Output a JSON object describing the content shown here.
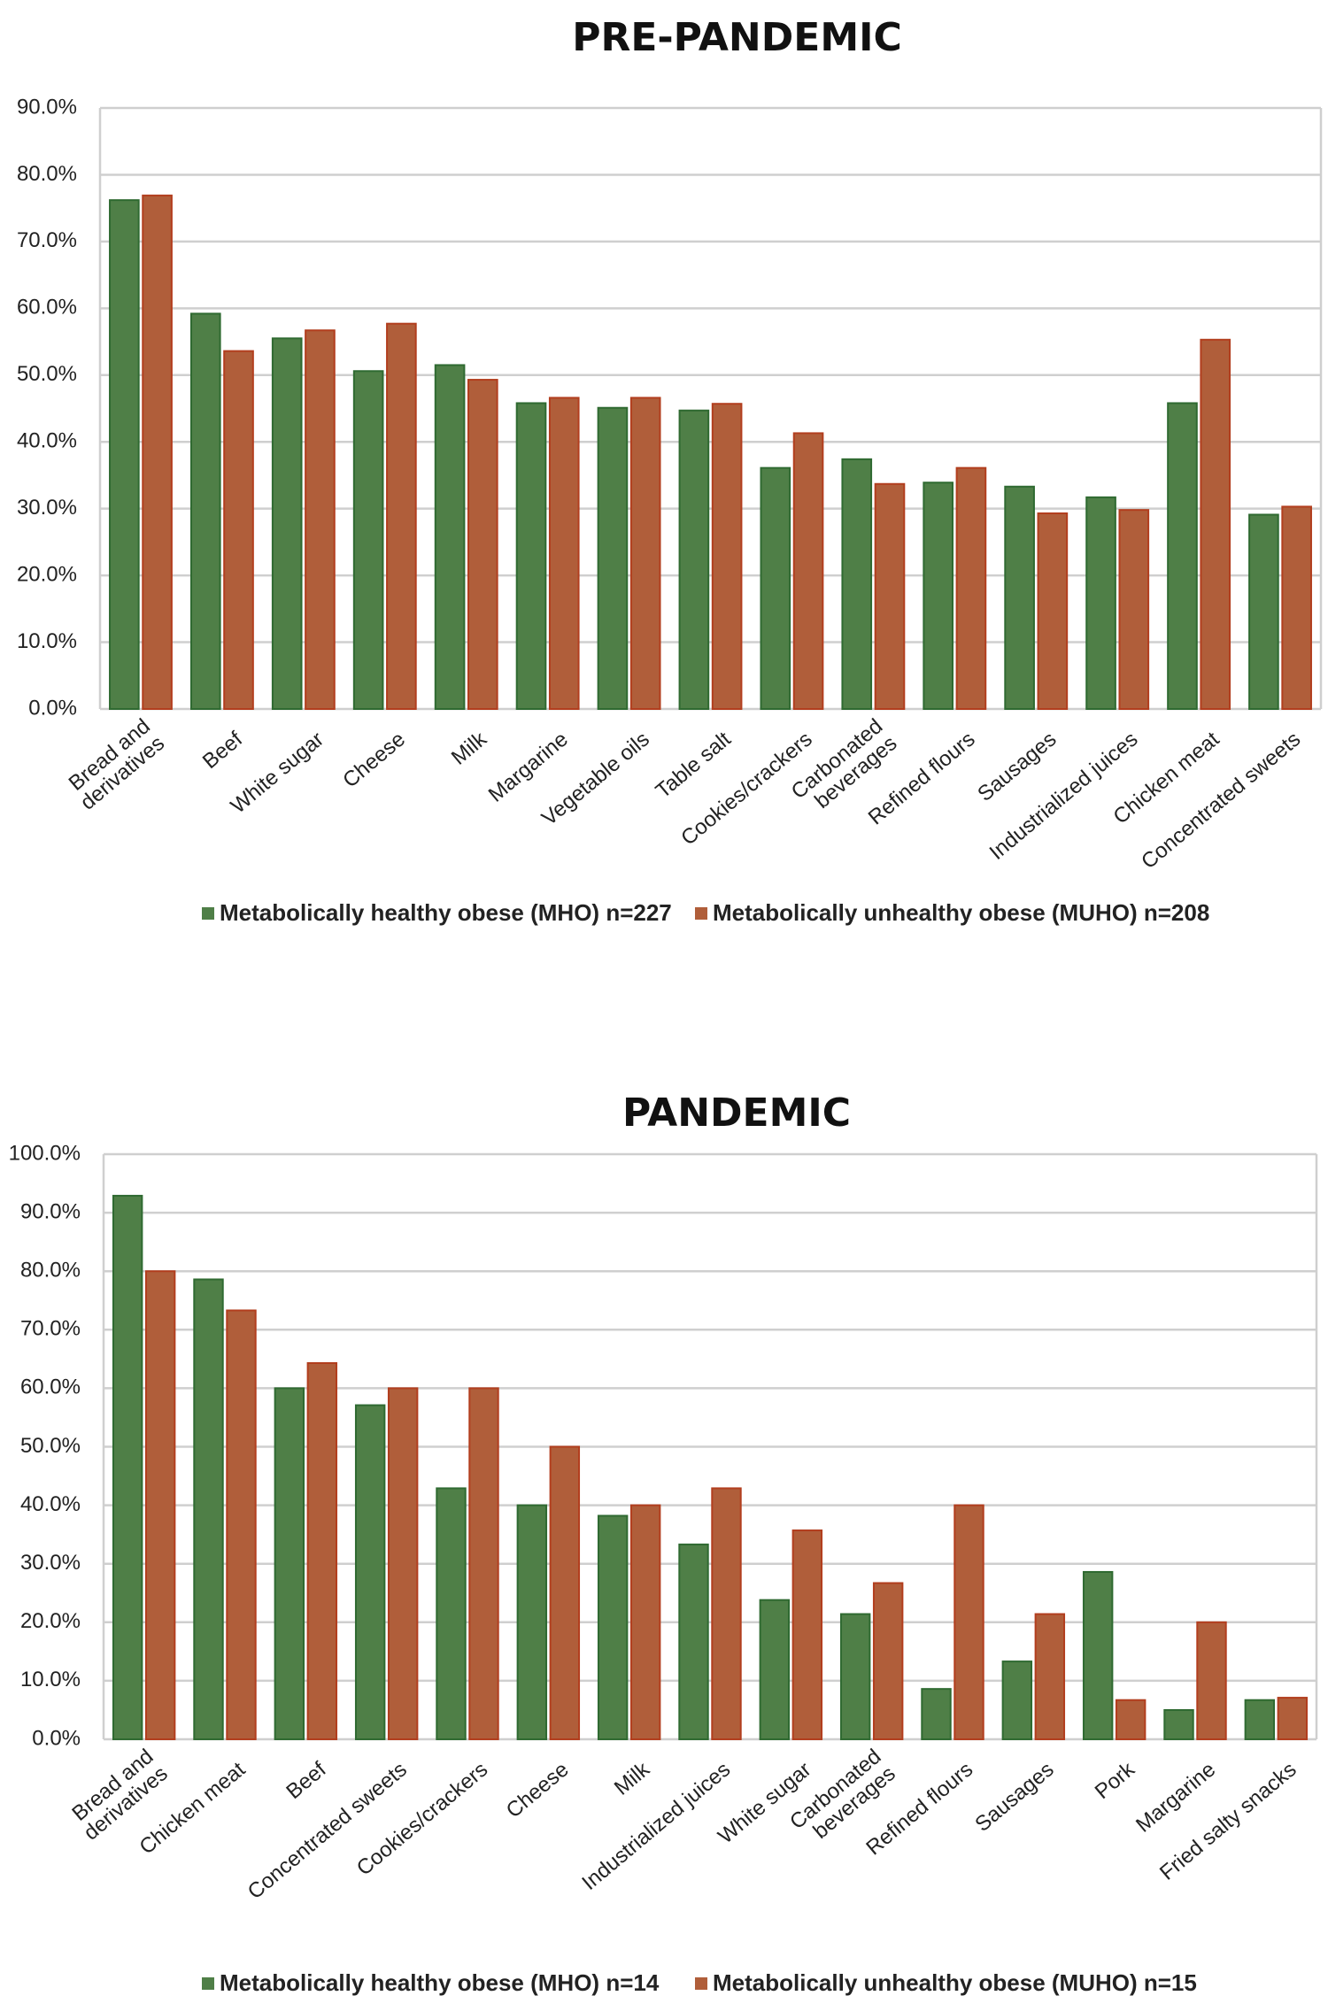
{
  "colors": {
    "mho": "#4f7f47",
    "mho_edge": "#2f6a31",
    "muho": "#b05e3a",
    "muho_edge": "#b23e1e",
    "grid": "#cfcfcf"
  },
  "chart_data": [
    {
      "type": "bar",
      "title": "PRE-PANDEMIC",
      "ylim": [
        0,
        90
      ],
      "yticks": [
        "0.0%",
        "10.0%",
        "20.0%",
        "30.0%",
        "40.0%",
        "50.0%",
        "60.0%",
        "70.0%",
        "80.0%",
        "90.0%"
      ],
      "grid": true,
      "legend": "bottom",
      "categories": [
        "Bread and\nderivatives",
        "Beef",
        "White sugar",
        "Cheese",
        "Milk",
        "Margarine",
        "Vegetable oils",
        "Table salt",
        "Cookies/crackers",
        "Carbonated\nbeverages",
        "Refined flours",
        "Sausages",
        "Industrialized juices",
        "Chicken meat",
        "Concentrated sweets"
      ],
      "series": [
        {
          "name": "Metabolically healthy obese (MHO) n=227",
          "values": [
            76.2,
            59.2,
            55.5,
            50.6,
            51.5,
            45.8,
            45.1,
            44.7,
            36.1,
            37.4,
            33.9,
            33.3,
            31.7,
            45.8,
            29.1
          ]
        },
        {
          "name": "Metabolically unhealthy obese (MUHO) n=208",
          "values": [
            76.9,
            53.6,
            56.7,
            57.7,
            49.3,
            46.6,
            46.6,
            45.7,
            41.3,
            33.7,
            36.1,
            29.3,
            29.8,
            55.3,
            30.3
          ]
        }
      ]
    },
    {
      "type": "bar",
      "title": "PANDEMIC",
      "ylim": [
        0,
        100
      ],
      "yticks": [
        "0.0%",
        "10.0%",
        "20.0%",
        "30.0%",
        "40.0%",
        "50.0%",
        "60.0%",
        "70.0%",
        "80.0%",
        "90.0%",
        "100.0%"
      ],
      "grid": true,
      "legend": "bottom",
      "categories": [
        "Bread and\nderivatives",
        "Chicken meat",
        "Beef",
        "Concentrated sweets",
        "Cookies/crackers",
        "Cheese",
        "Milk",
        "Industrialized juices",
        "White sugar",
        "Carbonated\nbeverages",
        "Refined flours",
        "Sausages",
        "Pork",
        "Margarine",
        "Fried salty snacks"
      ],
      "series": [
        {
          "name": "Metabolically healthy obese (MHO) n=14",
          "values": [
            92.9,
            78.6,
            60.0,
            57.1,
            42.9,
            40.0,
            38.2,
            33.3,
            23.8,
            21.4,
            8.6,
            13.3,
            28.6,
            5.0,
            6.7
          ]
        },
        {
          "name": "Metabolically unhealthy obese (MUHO) n=15",
          "values": [
            80.0,
            73.3,
            64.3,
            60.0,
            60.0,
            50.0,
            40.0,
            42.9,
            35.7,
            26.7,
            40.0,
            21.4,
            6.7,
            20.0,
            7.1
          ]
        }
      ]
    }
  ]
}
